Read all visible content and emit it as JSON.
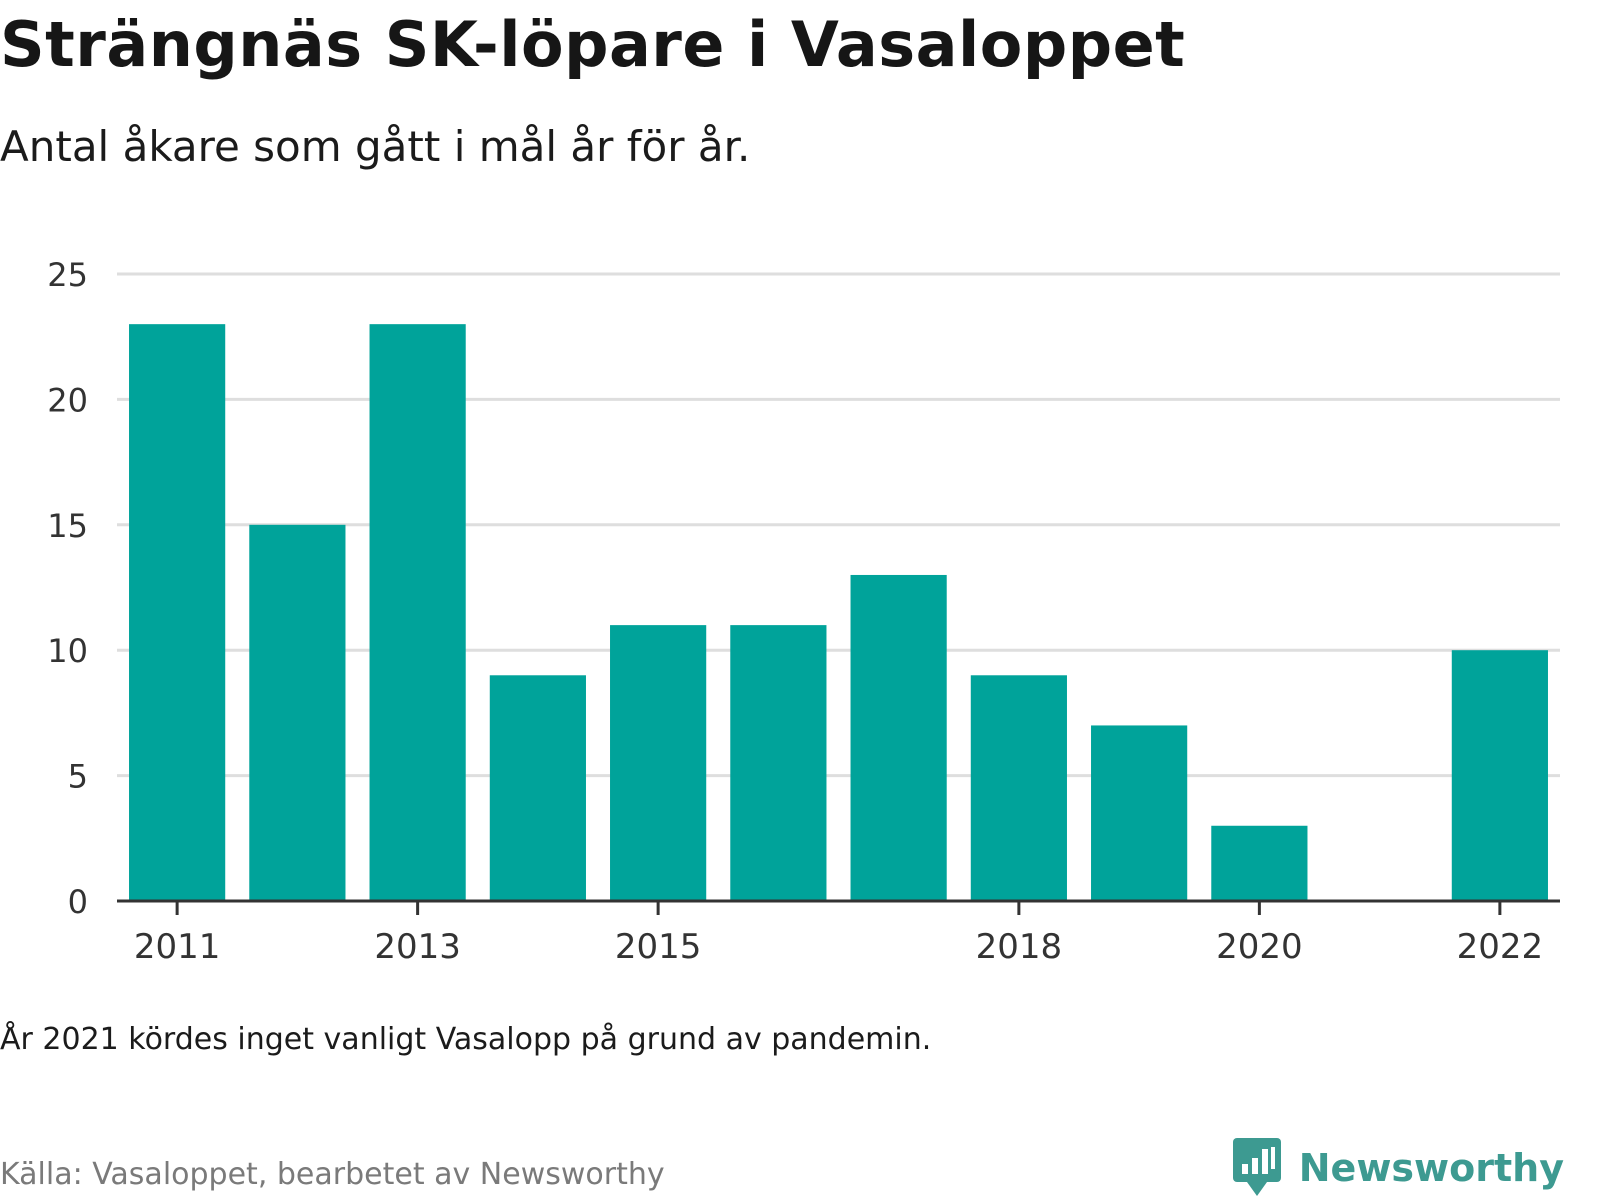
{
  "title": "Strängnäs SK-löpare i Vasaloppet",
  "subtitle": "Antal åkare som gått i mål år för år.",
  "note": "År 2021 kördes inget vanligt Vasalopp på grund av pandemin.",
  "source": "Källa: Vasaloppet, bearbetet av Newsworthy",
  "brand": {
    "name": "Newsworthy",
    "icon": "newsworthy-logo-icon",
    "color": "#3d9a91"
  },
  "chart_data": {
    "type": "bar",
    "categories": [
      "2011",
      "2012",
      "2013",
      "2014",
      "2015",
      "2016",
      "2017",
      "2018",
      "2019",
      "2020",
      "2021",
      "2022"
    ],
    "values": [
      23,
      15,
      23,
      9,
      11,
      11,
      13,
      9,
      7,
      3,
      null,
      10
    ],
    "x_tick_labels": [
      "2011",
      "2013",
      "2015",
      "2018",
      "2020",
      "2022"
    ],
    "y_ticks": [
      0,
      5,
      10,
      15,
      20,
      25
    ],
    "ylim": [
      0,
      25
    ],
    "bar_color": "#00a39a",
    "grid": true
  }
}
